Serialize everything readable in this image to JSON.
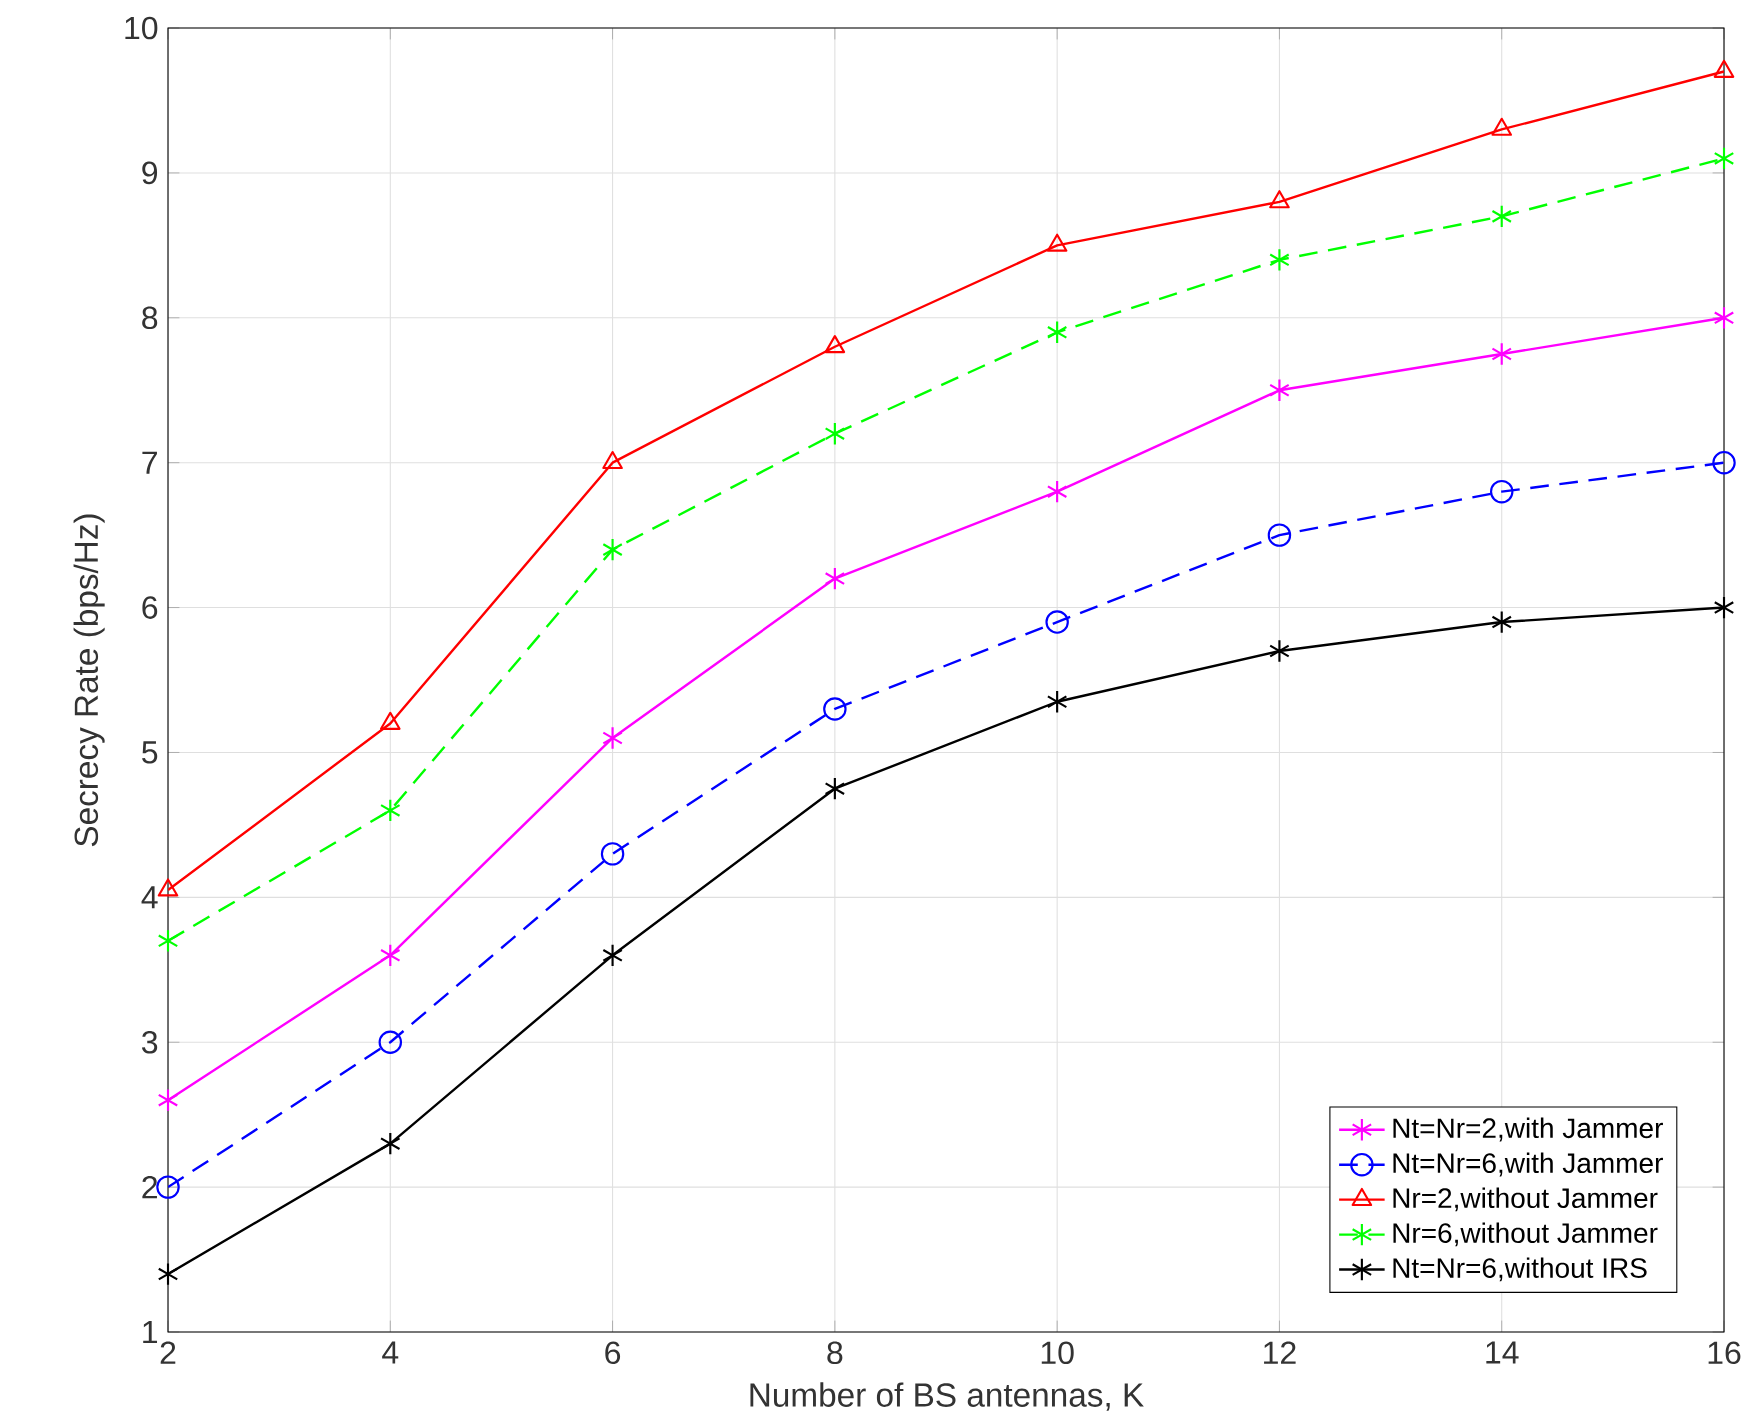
{
  "chart_data": {
    "type": "line",
    "xlabel": "Number of BS antennas, K",
    "ylabel": "Secrecy Rate (bps/Hz)",
    "x": [
      2,
      4,
      6,
      8,
      10,
      12,
      14,
      16
    ],
    "xlim": [
      2,
      16
    ],
    "ylim": [
      1,
      10
    ],
    "xticks": [
      2,
      4,
      6,
      8,
      10,
      12,
      14,
      16
    ],
    "yticks": [
      1,
      2,
      3,
      4,
      5,
      6,
      7,
      8,
      9,
      10
    ],
    "grid": true,
    "legend": "bottom right",
    "series": [
      {
        "name": "Nt=Nr=2,with Jammer",
        "color": "#ff00ff",
        "marker": "cross",
        "line_style": "solid",
        "values": [
          2.6,
          3.6,
          5.1,
          6.2,
          6.8,
          7.5,
          7.75,
          8.0
        ]
      },
      {
        "name": "Nt=Nr=6,with Jammer",
        "color": "#0000ff",
        "marker": "circle",
        "line_style": "dashed",
        "values": [
          2.0,
          3.0,
          4.3,
          5.3,
          5.9,
          6.5,
          6.8,
          7.0
        ]
      },
      {
        "name": "Nr=2,without Jammer",
        "color": "#ff0000",
        "marker": "triangle",
        "line_style": "solid",
        "values": [
          4.05,
          5.2,
          7.0,
          7.8,
          8.5,
          8.8,
          9.3,
          9.7
        ]
      },
      {
        "name": "Nr=6,without Jammer",
        "color": "#00ff00",
        "marker": "cross",
        "line_style": "dashed",
        "values": [
          3.7,
          4.6,
          6.4,
          7.2,
          7.9,
          8.4,
          8.7,
          9.1
        ]
      },
      {
        "name": "Nt=Nr=6,without IRS",
        "color": "#000000",
        "marker": "cross",
        "line_style": "solid",
        "values": [
          1.4,
          2.3,
          3.6,
          4.75,
          5.35,
          5.7,
          5.9,
          6.0
        ]
      }
    ]
  }
}
